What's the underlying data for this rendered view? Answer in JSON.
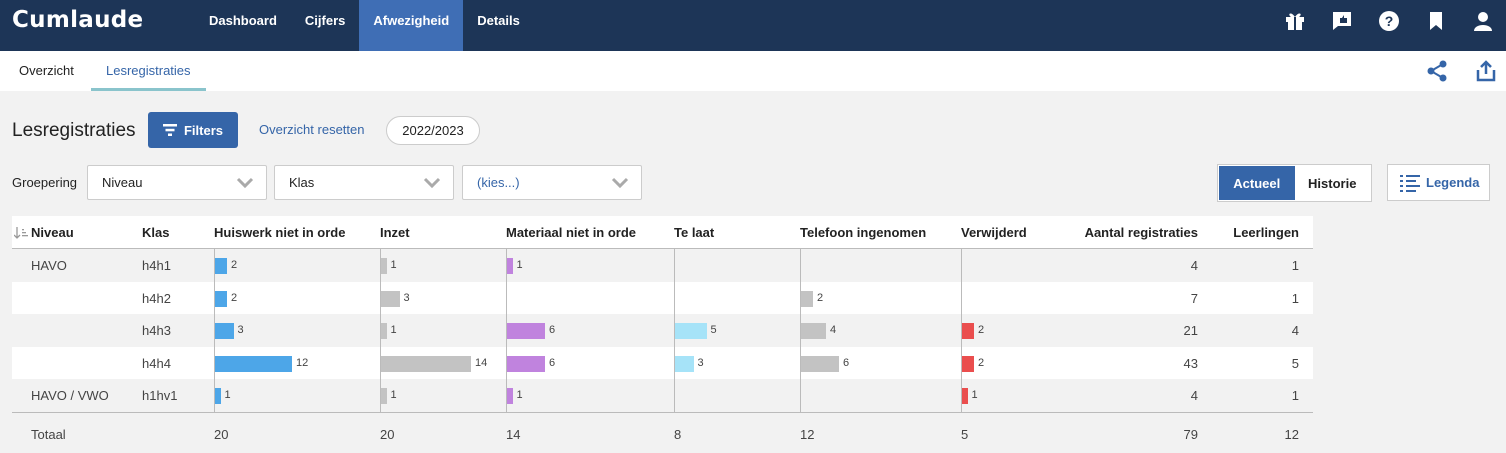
{
  "app": {
    "logo_text": "Cumlaude"
  },
  "nav": {
    "items": [
      "Dashboard",
      "Cijfers",
      "Afwezigheid",
      "Details"
    ],
    "active": "Afwezigheid"
  },
  "subnav": {
    "tabs": [
      "Overzicht",
      "Lesregistraties"
    ],
    "active": "Lesregistraties"
  },
  "toolbar": {
    "title": "Lesregistraties",
    "filters_label": "Filters",
    "reset_label": "Overzicht resetten",
    "year": "2022/2023"
  },
  "grouping": {
    "label": "Groepering",
    "selects": [
      {
        "value": "Niveau"
      },
      {
        "value": "Klas"
      },
      {
        "value": "(kies...)"
      }
    ]
  },
  "view_toggle": {
    "options": [
      "Actueel",
      "Historie"
    ],
    "active": "Actueel"
  },
  "legend_label": "Legenda",
  "colors": {
    "topbar": "#1d3557",
    "accent": "#3565a8",
    "huiswerk": "#4da6e8",
    "inzet": "#c3c3c3",
    "materiaal": "#c083de",
    "te_laat": "#a6e3f8",
    "telefoon": "#c3c3c3",
    "verwijderd": "#ea4e4e"
  },
  "table": {
    "headers": [
      "Niveau",
      "Klas",
      "Huiswerk niet in orde",
      "Inzet",
      "Materiaal niet in orde",
      "Te laat",
      "Telefoon ingenomen",
      "Verwijderd",
      "Aantal registraties",
      "Leerlingen"
    ],
    "rows": [
      {
        "niveau": "HAVO",
        "klas": "h4h1",
        "huiswerk": 2,
        "inzet": 1,
        "materiaal": 1,
        "te_laat": null,
        "telefoon": null,
        "verwijderd": null,
        "aantal": 4,
        "leerlingen": 1
      },
      {
        "niveau": "",
        "klas": "h4h2",
        "huiswerk": 2,
        "inzet": 3,
        "materiaal": null,
        "te_laat": null,
        "telefoon": 2,
        "verwijderd": null,
        "aantal": 7,
        "leerlingen": 1
      },
      {
        "niveau": "",
        "klas": "h4h3",
        "huiswerk": 3,
        "inzet": 1,
        "materiaal": 6,
        "te_laat": 5,
        "telefoon": 4,
        "verwijderd": 2,
        "aantal": 21,
        "leerlingen": 4
      },
      {
        "niveau": "",
        "klas": "h4h4",
        "huiswerk": 12,
        "inzet": 14,
        "materiaal": 6,
        "te_laat": 3,
        "telefoon": 6,
        "verwijderd": 2,
        "aantal": 43,
        "leerlingen": 5
      },
      {
        "niveau": "HAVO / VWO",
        "klas": "h1hv1",
        "huiswerk": 1,
        "inzet": 1,
        "materiaal": 1,
        "te_laat": null,
        "telefoon": null,
        "verwijderd": 1,
        "aantal": 4,
        "leerlingen": 1
      }
    ],
    "totals": {
      "label": "Totaal",
      "huiswerk": "20",
      "inzet": "20",
      "materiaal": "14",
      "te_laat": "8",
      "telefoon": "12",
      "verwijderd": "5",
      "aantal": "79",
      "leerlingen": "12"
    }
  }
}
